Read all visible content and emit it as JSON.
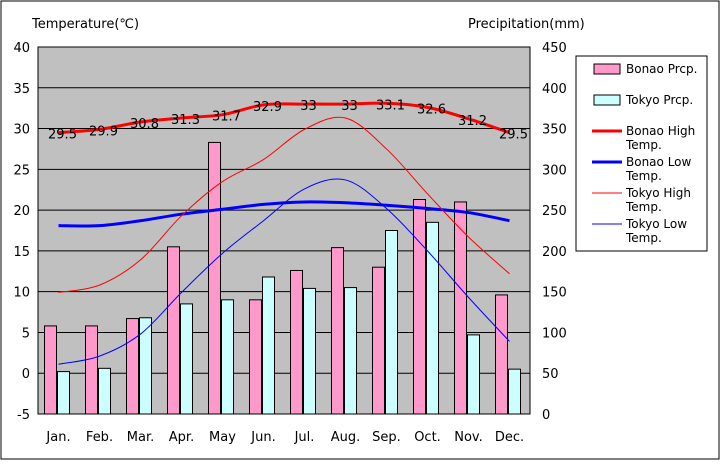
{
  "chart_data": {
    "type": "bar",
    "left_axis_title": "Temperature(℃)",
    "right_axis_title": "Precipitation(mm)",
    "categories": [
      "Jan.",
      "Feb.",
      "Mar.",
      "Apr.",
      "May",
      "Jun.",
      "Jul.",
      "Aug.",
      "Sep.",
      "Oct.",
      "Nov.",
      "Dec."
    ],
    "y_left": {
      "min": -5,
      "max": 40,
      "step": 5
    },
    "y_right": {
      "min": 0,
      "max": 450,
      "step": 50
    },
    "grid": true,
    "legend_position": "right",
    "bar_series": [
      {
        "name": "Bonao Prcp.",
        "color": "#ff99cc",
        "values": [
          108,
          108,
          117,
          205,
          333,
          140,
          176,
          204,
          180,
          263,
          260,
          146
        ]
      },
      {
        "name": "Tokyo Prcp.",
        "color": "#ccffff",
        "values": [
          52,
          56,
          118,
          135,
          140,
          168,
          154,
          155,
          225,
          235,
          97,
          55
        ]
      }
    ],
    "line_series": [
      {
        "name": "Bonao High Temp.",
        "color": "#ff0000",
        "width": "thick",
        "values": [
          29.5,
          29.9,
          30.8,
          31.3,
          31.7,
          32.9,
          33,
          33,
          33.1,
          32.6,
          31.2,
          29.5
        ],
        "labels": [
          "29.5",
          "29.9",
          "30.8",
          "31.3",
          "31.7",
          "32.9",
          "33",
          "33",
          "33.1",
          "32.6",
          "31.2",
          "29.5"
        ]
      },
      {
        "name": "Bonao Low Temp.",
        "color": "#0000ff",
        "width": "thick",
        "values": [
          18.1,
          18.1,
          18.7,
          19.5,
          20.1,
          20.7,
          21.0,
          20.9,
          20.6,
          20.2,
          19.7,
          18.7
        ]
      },
      {
        "name": "Tokyo High Temp.",
        "color": "#ff0000",
        "width": "thin",
        "values": [
          9.9,
          10.8,
          13.9,
          19.3,
          23.5,
          26.2,
          29.9,
          31.3,
          27.5,
          22.0,
          16.7,
          12.2
        ]
      },
      {
        "name": "Tokyo Low Temp.",
        "color": "#0000ff",
        "width": "thin",
        "values": [
          1.1,
          2.1,
          4.8,
          9.9,
          14.7,
          18.7,
          22.6,
          23.7,
          20.2,
          15.0,
          9.3,
          3.9
        ]
      }
    ],
    "legend_entries": [
      {
        "kind": "box",
        "color": "#ff99cc",
        "lines": [
          "Bonao Prcp."
        ]
      },
      {
        "kind": "box",
        "color": "#ccffff",
        "lines": [
          "Tokyo Prcp."
        ]
      },
      {
        "kind": "line",
        "color": "#ff0000",
        "width": "thick",
        "lines": [
          "Bonao High",
          "Temp."
        ]
      },
      {
        "kind": "line",
        "color": "#0000ff",
        "width": "thick",
        "lines": [
          "Bonao Low",
          "Temp."
        ]
      },
      {
        "kind": "line",
        "color": "#ff0000",
        "width": "thin",
        "lines": [
          "Tokyo High",
          "Temp."
        ]
      },
      {
        "kind": "line",
        "color": "#0000ff",
        "width": "thin",
        "lines": [
          "Tokyo Low",
          "Temp."
        ]
      }
    ]
  }
}
